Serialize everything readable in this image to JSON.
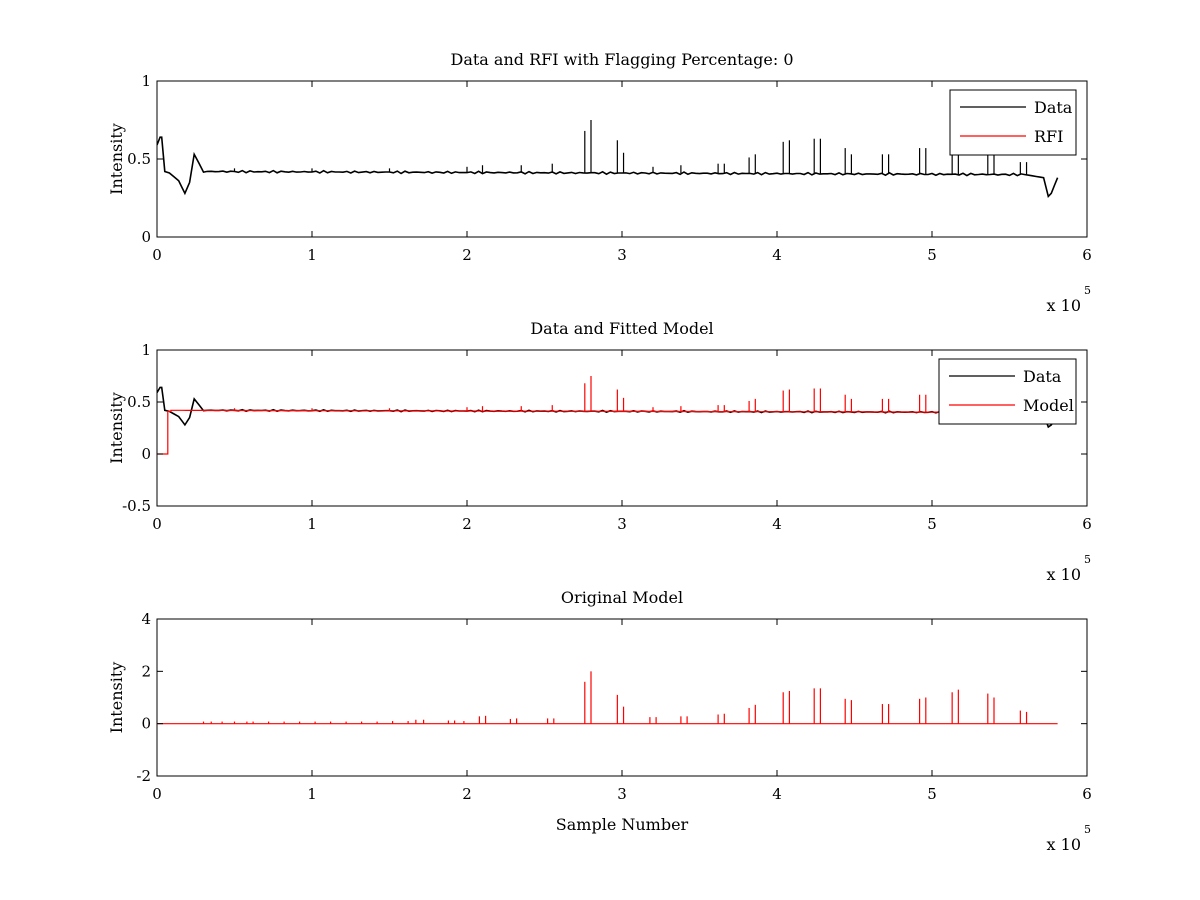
{
  "chart_data": [
    {
      "type": "line",
      "title": "Data and RFI with Flagging Percentage: 0",
      "ylabel": "Intensity",
      "xlabel": "",
      "xlim": [
        0,
        600000
      ],
      "ylim": [
        0,
        1
      ],
      "xticks": [
        0,
        1,
        2,
        3,
        4,
        5,
        6
      ],
      "yticks": [
        "0",
        "0.5",
        "1"
      ],
      "ytick_values": [
        0,
        0.5,
        1
      ],
      "x_multiplier": {
        "base": "x 10",
        "exponent": "5"
      },
      "legend_position": "top-right",
      "series": [
        {
          "name": "Data",
          "color": "#000000",
          "baseline": 0.415,
          "x": [
            0,
            2000,
            3000,
            5000,
            8000,
            14000,
            18000,
            21000,
            24000,
            30000,
            300000,
            560000,
            572000,
            575000,
            577000,
            581000
          ],
          "y": [
            0.59,
            0.64,
            0.64,
            0.42,
            0.41,
            0.36,
            0.28,
            0.35,
            0.53,
            0.42,
            0.41,
            0.4,
            0.38,
            0.26,
            0.28,
            0.38
          ],
          "spikes": [
            [
              50000,
              0.44
            ],
            [
              100000,
              0.44
            ],
            [
              150000,
              0.44
            ],
            [
              200000,
              0.45
            ],
            [
              210000,
              0.46
            ],
            [
              235000,
              0.46
            ],
            [
              255000,
              0.47
            ],
            [
              276000,
              0.68
            ],
            [
              280000,
              0.75
            ],
            [
              297000,
              0.62
            ],
            [
              301000,
              0.54
            ],
            [
              320000,
              0.45
            ],
            [
              338000,
              0.46
            ],
            [
              362000,
              0.47
            ],
            [
              366000,
              0.47
            ],
            [
              382000,
              0.51
            ],
            [
              386000,
              0.53
            ],
            [
              404000,
              0.61
            ],
            [
              408000,
              0.62
            ],
            [
              424000,
              0.63
            ],
            [
              428000,
              0.63
            ],
            [
              444000,
              0.57
            ],
            [
              448000,
              0.53
            ],
            [
              468000,
              0.53
            ],
            [
              472000,
              0.53
            ],
            [
              492000,
              0.57
            ],
            [
              496000,
              0.57
            ],
            [
              513000,
              0.57
            ],
            [
              517000,
              0.57
            ],
            [
              536000,
              0.57
            ],
            [
              540000,
              0.57
            ],
            [
              557000,
              0.48
            ],
            [
              561000,
              0.48
            ]
          ]
        },
        {
          "name": "RFI",
          "color": "#ff0000",
          "x": [],
          "y": []
        }
      ]
    },
    {
      "type": "line",
      "title": "Data and Fitted Model",
      "ylabel": "Intensity",
      "xlabel": "",
      "xlim": [
        0,
        600000
      ],
      "ylim": [
        -0.5,
        1
      ],
      "xticks": [
        0,
        1,
        2,
        3,
        4,
        5,
        6
      ],
      "yticks": [
        "-0.5",
        "0",
        "0.5",
        "1"
      ],
      "ytick_values": [
        -0.5,
        0,
        0.5,
        1
      ],
      "x_multiplier": {
        "base": "x 10",
        "exponent": "5"
      },
      "legend_position": "top-right",
      "series": [
        {
          "name": "Data",
          "color": "#000000",
          "baseline": 0.415,
          "x": [
            0,
            2000,
            3000,
            5000,
            8000,
            14000,
            18000,
            21000,
            24000,
            30000,
            300000,
            560000,
            572000,
            575000,
            577000,
            581000
          ],
          "y": [
            0.59,
            0.64,
            0.64,
            0.42,
            0.41,
            0.36,
            0.28,
            0.35,
            0.53,
            0.42,
            0.41,
            0.4,
            0.38,
            0.26,
            0.28,
            0.38
          ],
          "spikes": []
        },
        {
          "name": "Model",
          "color": "#ff0000",
          "x": [
            0,
            7000,
            7000,
            9000,
            9000,
            581000
          ],
          "y": [
            0.0,
            0.0,
            0.41,
            0.41,
            0.42,
            0.4
          ],
          "spikes": [
            [
              50000,
              0.44
            ],
            [
              100000,
              0.44
            ],
            [
              150000,
              0.44
            ],
            [
              200000,
              0.45
            ],
            [
              210000,
              0.46
            ],
            [
              235000,
              0.46
            ],
            [
              255000,
              0.47
            ],
            [
              276000,
              0.68
            ],
            [
              280000,
              0.75
            ],
            [
              297000,
              0.62
            ],
            [
              301000,
              0.54
            ],
            [
              320000,
              0.45
            ],
            [
              338000,
              0.46
            ],
            [
              362000,
              0.47
            ],
            [
              366000,
              0.47
            ],
            [
              382000,
              0.51
            ],
            [
              386000,
              0.53
            ],
            [
              404000,
              0.61
            ],
            [
              408000,
              0.62
            ],
            [
              424000,
              0.63
            ],
            [
              428000,
              0.63
            ],
            [
              444000,
              0.57
            ],
            [
              448000,
              0.53
            ],
            [
              468000,
              0.53
            ],
            [
              472000,
              0.53
            ],
            [
              492000,
              0.57
            ],
            [
              496000,
              0.57
            ],
            [
              513000,
              0.57
            ],
            [
              517000,
              0.57
            ],
            [
              536000,
              0.57
            ],
            [
              540000,
              0.57
            ],
            [
              557000,
              0.48
            ],
            [
              561000,
              0.48
            ]
          ]
        }
      ]
    },
    {
      "type": "line",
      "title": "Original Model",
      "ylabel": "Intensity",
      "xlabel": "Sample Number",
      "xlim": [
        0,
        600000
      ],
      "ylim": [
        -2,
        4
      ],
      "xticks": [
        0,
        1,
        2,
        3,
        4,
        5,
        6
      ],
      "yticks": [
        "-2",
        "0",
        "2",
        "4"
      ],
      "ytick_values": [
        -2,
        0,
        2,
        4
      ],
      "x_multiplier": {
        "base": "x 10",
        "exponent": "5"
      },
      "series": [
        {
          "name": "",
          "color": "#ff0000",
          "x": [
            0,
            581000
          ],
          "y": [
            0.0,
            0.0
          ],
          "spikes": [
            [
              30000,
              0.08
            ],
            [
              35000,
              0.08
            ],
            [
              42000,
              0.08
            ],
            [
              50000,
              0.08
            ],
            [
              58000,
              0.08
            ],
            [
              62000,
              0.08
            ],
            [
              72000,
              0.08
            ],
            [
              82000,
              0.08
            ],
            [
              92000,
              0.08
            ],
            [
              102000,
              0.08
            ],
            [
              112000,
              0.08
            ],
            [
              122000,
              0.08
            ],
            [
              132000,
              0.08
            ],
            [
              142000,
              0.08
            ],
            [
              152000,
              0.1
            ],
            [
              162000,
              0.1
            ],
            [
              167000,
              0.15
            ],
            [
              172000,
              0.15
            ],
            [
              188000,
              0.12
            ],
            [
              192000,
              0.12
            ],
            [
              198000,
              0.1
            ],
            [
              208000,
              0.28
            ],
            [
              212000,
              0.3
            ],
            [
              228000,
              0.18
            ],
            [
              232000,
              0.2
            ],
            [
              252000,
              0.2
            ],
            [
              256000,
              0.2
            ],
            [
              276000,
              1.6
            ],
            [
              280000,
              2.0
            ],
            [
              297000,
              1.1
            ],
            [
              301000,
              0.65
            ],
            [
              318000,
              0.25
            ],
            [
              322000,
              0.25
            ],
            [
              338000,
              0.28
            ],
            [
              342000,
              0.28
            ],
            [
              362000,
              0.35
            ],
            [
              366000,
              0.38
            ],
            [
              382000,
              0.6
            ],
            [
              386000,
              0.72
            ],
            [
              404000,
              1.2
            ],
            [
              408000,
              1.25
            ],
            [
              424000,
              1.35
            ],
            [
              428000,
              1.35
            ],
            [
              444000,
              0.95
            ],
            [
              448000,
              0.9
            ],
            [
              468000,
              0.75
            ],
            [
              472000,
              0.75
            ],
            [
              492000,
              0.95
            ],
            [
              496000,
              1.0
            ],
            [
              513000,
              1.2
            ],
            [
              517000,
              1.3
            ],
            [
              536000,
              1.15
            ],
            [
              540000,
              1.0
            ],
            [
              557000,
              0.5
            ],
            [
              561000,
              0.45
            ]
          ]
        }
      ]
    }
  ]
}
